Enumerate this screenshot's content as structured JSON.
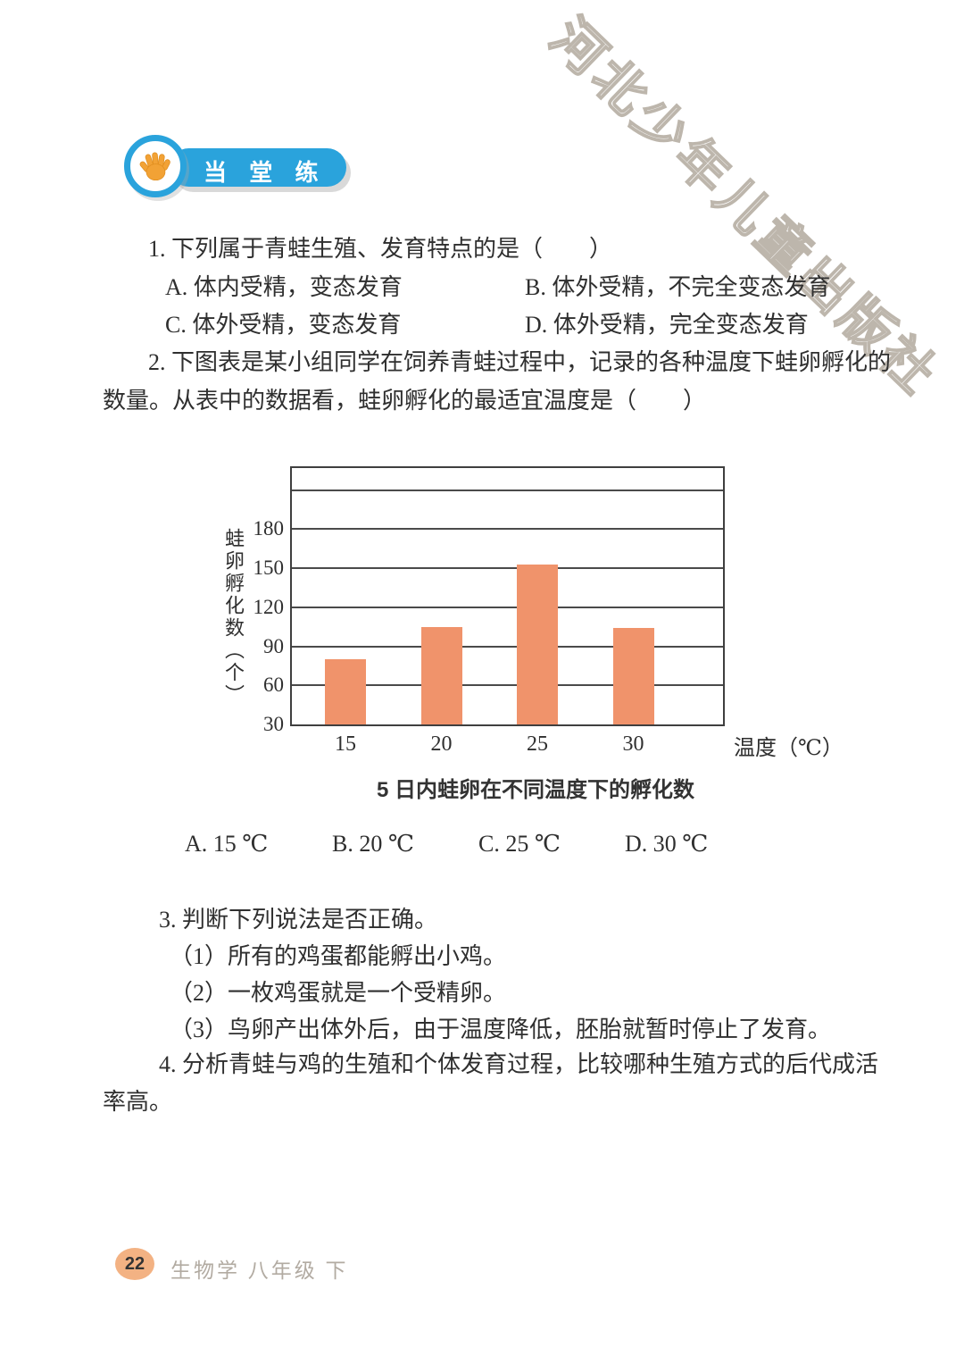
{
  "header_badge": {
    "label": "当 堂 练",
    "pill_color": "#2AA3DC",
    "hand_color": "#F2A235"
  },
  "watermark": {
    "text": "河北少年儿童出版社"
  },
  "questions": {
    "q1": {
      "stem": "1. 下列属于青蛙生殖、发育特点的是（　　）",
      "options": [
        "A. 体内受精，变态发育",
        "B. 体外受精，不完全变态发育",
        "C. 体外受精，变态发育",
        "D. 体外受精，完全变态发育"
      ]
    },
    "q2": {
      "stem_line1": "2. 下图表是某小组同学在饲养青蛙过程中，记录的各种温度下蛙卵孵化的",
      "stem_line2": "数量。从表中的数据看，蛙卵孵化的最适宜温度是（　　）",
      "answer_options": [
        "A. 15 ℃",
        "B. 20 ℃",
        "C. 25 ℃",
        "D. 30 ℃"
      ]
    },
    "q3": {
      "stem": "3. 判断下列说法是否正确。",
      "items": [
        "（1）所有的鸡蛋都能孵出小鸡。",
        "（2）一枚鸡蛋就是一个受精卵。",
        "（3）鸟卵产出体外后，由于温度降低，胚胎就暂时停止了发育。"
      ]
    },
    "q4": {
      "stem_line1": "4. 分析青蛙与鸡的生殖和个体发育过程，比较哪种生殖方式的后代成活",
      "stem_line2": "率高。"
    }
  },
  "chart_data": {
    "type": "bar",
    "title": "5 日内蛙卵在不同温度下的孵化数",
    "categories": [
      "15",
      "20",
      "25",
      "30"
    ],
    "values": [
      80,
      105,
      153,
      104
    ],
    "xlabel": "温度（℃）",
    "ylabel": "蛙卵孵化数（个）",
    "ylim": [
      30,
      227
    ],
    "yticks": [
      30,
      60,
      90,
      120,
      150,
      180
    ],
    "gridlines": [
      60,
      90,
      120,
      150,
      180,
      210
    ],
    "grid": true,
    "legend": false,
    "bar_color": "#F0936B"
  },
  "footer": {
    "page_number": "22",
    "book_title": "生物学 八年级 下"
  }
}
